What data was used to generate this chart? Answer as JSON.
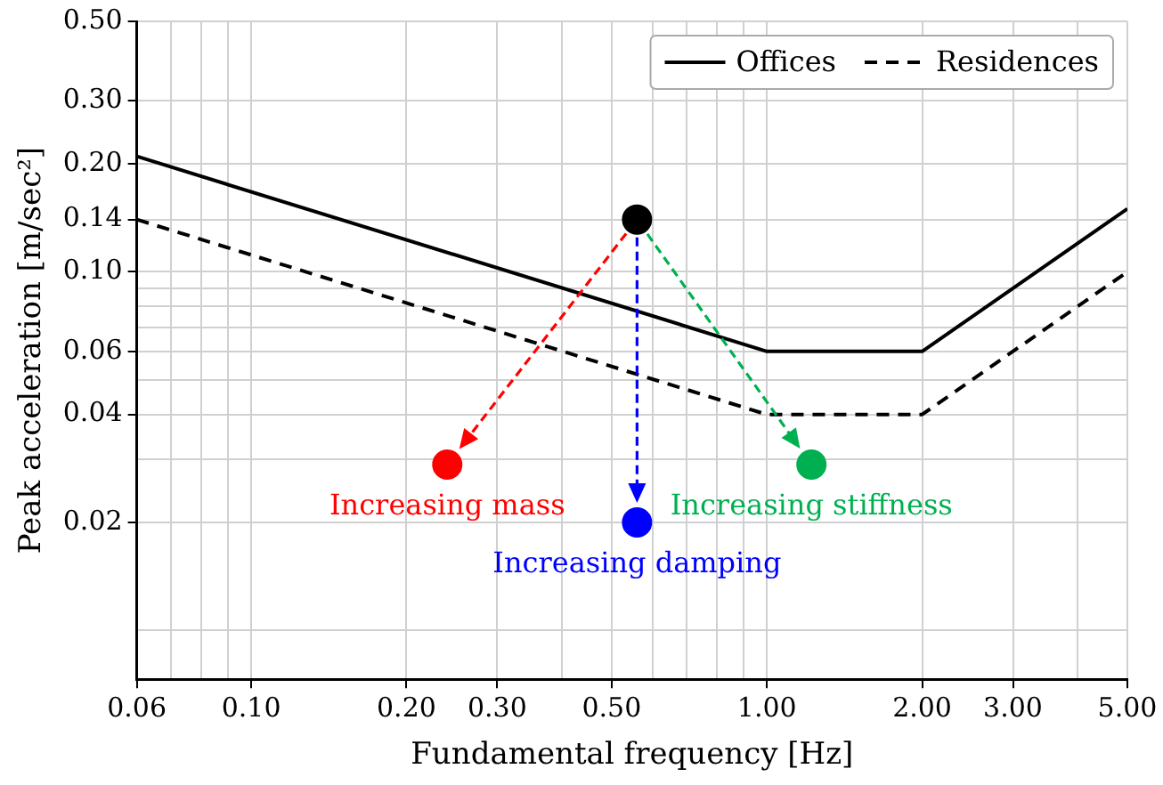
{
  "chart_data": {
    "type": "line",
    "xlabel": "Fundamental frequency [Hz]",
    "ylabel": "Peak acceleration [m/sec²]",
    "log": "xy",
    "grid": true,
    "legend": "top right",
    "xlim": [
      0.06,
      5
    ],
    "ylim": [
      0.0073,
      0.5
    ],
    "xticks": [
      {
        "value": 0.06,
        "label": "0.06"
      },
      {
        "value": 0.07,
        "label": null
      },
      {
        "value": 0.08,
        "label": null
      },
      {
        "value": 0.09,
        "label": null
      },
      {
        "value": 0.1,
        "label": "0.10"
      },
      {
        "value": 0.2,
        "label": "0.20"
      },
      {
        "value": 0.3,
        "label": "0.30"
      },
      {
        "value": 0.4,
        "label": null
      },
      {
        "value": 0.5,
        "label": "0.50"
      },
      {
        "value": 0.6,
        "label": null
      },
      {
        "value": 0.7,
        "label": null
      },
      {
        "value": 0.8,
        "label": null
      },
      {
        "value": 0.9,
        "label": null
      },
      {
        "value": 1,
        "label": "1.00"
      },
      {
        "value": 2,
        "label": "2.00"
      },
      {
        "value": 3,
        "label": "3.00"
      },
      {
        "value": 4,
        "label": null
      },
      {
        "value": 5,
        "label": "5.00"
      }
    ],
    "yticks": [
      {
        "value": 0.01,
        "label": null
      },
      {
        "value": 0.02,
        "label": "0.02"
      },
      {
        "value": 0.03,
        "label": null
      },
      {
        "value": 0.04,
        "label": "0.04"
      },
      {
        "value": 0.05,
        "label": null
      },
      {
        "value": 0.06,
        "label": "0.06"
      },
      {
        "value": 0.07,
        "label": null
      },
      {
        "value": 0.08,
        "label": null
      },
      {
        "value": 0.09,
        "label": null
      },
      {
        "value": 0.1,
        "label": "0.10"
      },
      {
        "value": 0.14,
        "label": "0.14"
      },
      {
        "value": 0.2,
        "label": "0.20"
      },
      {
        "value": 0.3,
        "label": "0.30"
      },
      {
        "value": 0.5,
        "label": "0.50"
      }
    ],
    "series": [
      {
        "name": "Offices",
        "type": "line",
        "color": "#000000",
        "line_style": "solid",
        "x": [
          0.06,
          1,
          2,
          5
        ],
        "values": [
          0.21,
          0.06,
          0.06,
          0.15
        ]
      },
      {
        "name": "Residences",
        "type": "line",
        "color": "#000000",
        "line_style": "dashed",
        "x": [
          0.06,
          1,
          2,
          5
        ],
        "values": [
          0.14,
          0.04,
          0.04,
          0.1
        ]
      },
      {
        "type": "scatter",
        "marker": "circle",
        "x": [
          0.56,
          0.24,
          0.56,
          1.22
        ],
        "values": [
          0.14,
          0.029,
          0.02,
          0.029
        ],
        "colors": [
          "#000000",
          "#ff0000",
          "#0000ff",
          "#00b050"
        ]
      }
    ],
    "annotations": [
      {
        "text": "Increasing mass",
        "x": 0.24,
        "y": 0.029
      },
      {
        "text": "Increasing damping",
        "x": 0.56,
        "y": 0.02
      },
      {
        "text": "Increasing stiffness",
        "x": 1.22,
        "y": 0.029
      }
    ]
  }
}
